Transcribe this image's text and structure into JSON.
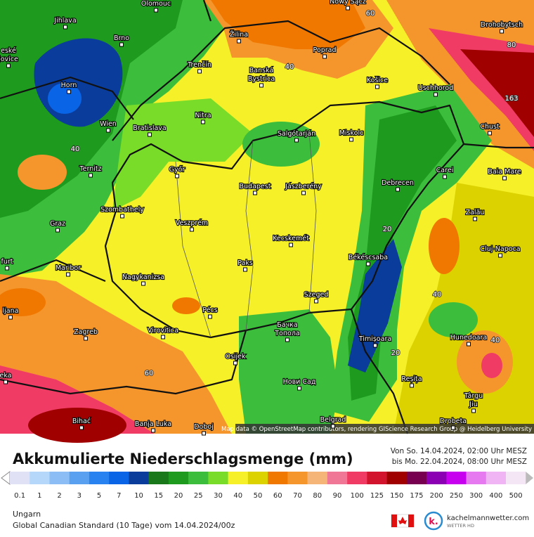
{
  "map": {
    "cities": [
      [
        "Olomouc"
      ],
      [
        "Nowy Sącz"
      ],
      [
        "Jihlava"
      ],
      [
        "Brno"
      ],
      [
        "Žilina"
      ],
      [
        "Poprad"
      ],
      [
        "Drohobytsch"
      ],
      [
        "eské",
        "jovice"
      ],
      [
        "Trenčín"
      ],
      [
        "Banská",
        "Bystrica"
      ],
      [
        "Košice"
      ],
      [
        "Uschhorod"
      ],
      [
        "Horn"
      ],
      [
        "Nitra"
      ],
      [
        "Wien"
      ],
      [
        "Bratislava"
      ],
      [
        "Salgótarján"
      ],
      [
        "Miskolc"
      ],
      [
        "Chust"
      ],
      [
        "Ternitz"
      ],
      [
        "Győr"
      ],
      [
        "Carei"
      ],
      [
        "Baia Mare"
      ],
      [
        "Budapest"
      ],
      [
        "Jászberény"
      ],
      [
        "Debrecen"
      ],
      [
        "Szombathely"
      ],
      [
        "Zalău"
      ],
      [
        "Graz"
      ],
      [
        "Veszprém"
      ],
      [
        "Kecskemét"
      ],
      [
        "Cluj-Napoca"
      ],
      [
        "Békéscsaba"
      ],
      [
        "furt"
      ],
      [
        "Paks"
      ],
      [
        "Maribor"
      ],
      [
        "Nagykanizsa"
      ],
      [
        "Szeged"
      ],
      [
        "Pécs"
      ],
      [
        "ljana"
      ],
      [
        "Бачка",
        "Топола"
      ],
      [
        "Virovitica"
      ],
      [
        "Zagreb"
      ],
      [
        "Hunedoara"
      ],
      [
        "Timișoara"
      ],
      [
        "Osijek"
      ],
      [
        "eka"
      ],
      [
        "Reșița"
      ],
      [
        "Нови Сад"
      ],
      [
        "Târgu",
        "Jiu"
      ],
      [
        "Belgrad"
      ],
      [
        "Bihać"
      ],
      [
        "Drobeta"
      ],
      [
        "Banja Luka"
      ],
      [
        "Doboj"
      ]
    ],
    "contour_labels": [
      60,
      80,
      40,
      163,
      40,
      20,
      40,
      20,
      60,
      40
    ],
    "attribution": "Map data © OpenStreetMap contributors, rendering GIScience Research Group @ Heidelberg University"
  },
  "header": {
    "title": "Akkumulierte Niederschlagsmenge (mm)",
    "from": "Von So. 14.04.2024, 02:00 Uhr MESZ",
    "to": "bis Mo. 22.04.2024, 08:00 Uhr MESZ"
  },
  "legend": {
    "values": [
      0.1,
      1,
      2,
      3,
      5,
      7,
      10,
      15,
      20,
      25,
      30,
      40,
      50,
      60,
      70,
      80,
      90,
      100,
      125,
      150,
      175,
      200,
      250,
      300,
      400,
      500
    ],
    "colors": [
      "#e1e1f5",
      "#b4d7fa",
      "#8cbef5",
      "#5aa0f0",
      "#2882f0",
      "#0a64e6",
      "#0a3c9b",
      "#197819",
      "#1e9b1e",
      "#3cbe3c",
      "#78dc28",
      "#f5f028",
      "#dcd200",
      "#f07800",
      "#f5962d",
      "#f5b478",
      "#f07896",
      "#f03c64",
      "#d2142d",
      "#a00000",
      "#780050",
      "#8c00b4",
      "#c800f0",
      "#e678f0",
      "#f0b4f5",
      "#f5e6f5"
    ]
  },
  "footer": {
    "region": "Ungarn",
    "model": "Global Canadian Standard (10 Tage) vom 14.04.2024/00z",
    "brand": "kachelmannwetter.com",
    "brand_sub": "WETTER HD"
  }
}
